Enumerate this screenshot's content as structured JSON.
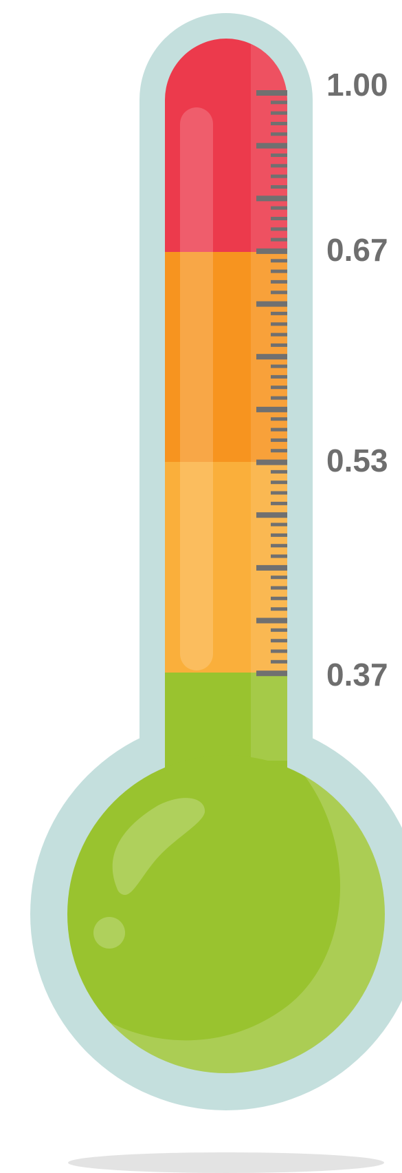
{
  "scale": {
    "labels": [
      {
        "text": "1.00",
        "value": 1.0
      },
      {
        "text": "0.67",
        "value": 0.67
      },
      {
        "text": "0.53",
        "value": 0.53
      },
      {
        "text": "0.37",
        "value": 0.37
      }
    ]
  },
  "bands": [
    {
      "name": "red-band",
      "color": "#EC3A4C",
      "from": 0.67,
      "to": 1.0
    },
    {
      "name": "dark-orange-band",
      "color": "#F7941F",
      "from": 0.53,
      "to": 0.67
    },
    {
      "name": "light-orange-band",
      "color": "#FAAF3B",
      "from": 0.37,
      "to": 0.53
    },
    {
      "name": "green-band",
      "color": "#99C32F",
      "from": 0.0,
      "to": 0.37
    }
  ],
  "colors": {
    "casing": "#C4DFDD",
    "bulb": "#99C32F",
    "ticks": "#707070",
    "shadow": "#E3E3E3"
  }
}
